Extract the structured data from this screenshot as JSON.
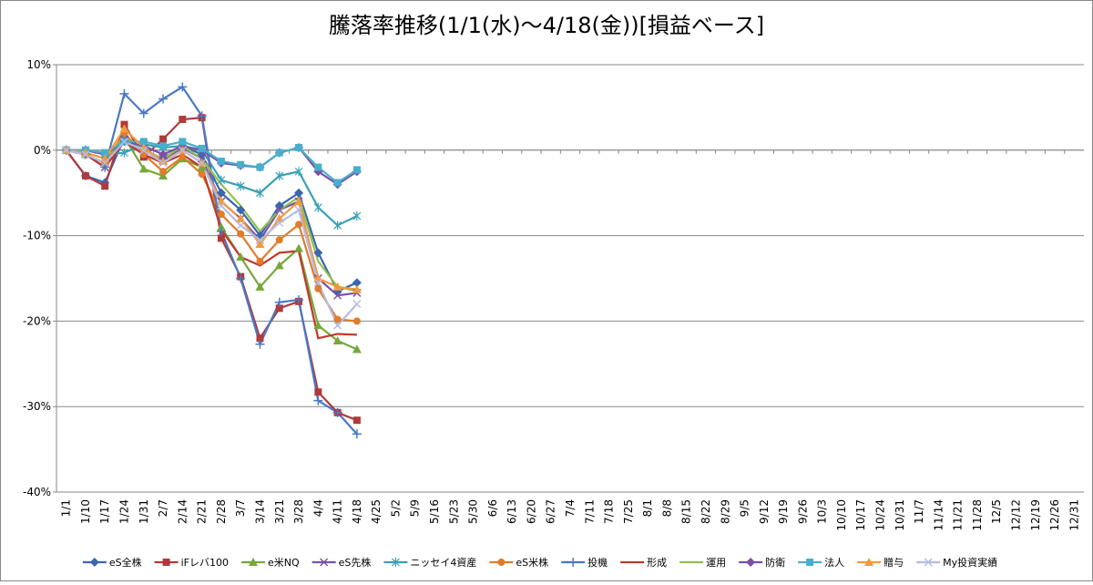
{
  "chart_data": {
    "type": "line",
    "title": "騰落率推移(1/1(水)～4/18(金))[損益ベース]",
    "categories": [
      "1/1",
      "1/10",
      "1/17",
      "1/24",
      "1/31",
      "2/7",
      "2/14",
      "2/21",
      "2/28",
      "3/7",
      "3/14",
      "3/21",
      "3/28",
      "4/4",
      "4/11",
      "4/18",
      "4/25",
      "5/2",
      "5/9",
      "5/16",
      "5/23",
      "5/30",
      "6/6",
      "6/13",
      "6/20",
      "6/27",
      "7/4",
      "7/11",
      "7/18",
      "7/25",
      "8/1",
      "8/8",
      "8/15",
      "8/22",
      "8/29",
      "9/5",
      "9/12",
      "9/19",
      "9/26",
      "10/3",
      "10/10",
      "10/17",
      "10/24",
      "10/31",
      "11/7",
      "11/14",
      "11/21",
      "11/28",
      "12/5",
      "12/12",
      "12/19",
      "12/26",
      "12/31"
    ],
    "ylim": [
      -40,
      10
    ],
    "yticks": [
      {
        "value": -40,
        "label": "-40%"
      },
      {
        "value": -30,
        "label": "-30%"
      },
      {
        "value": -20,
        "label": "-20%"
      },
      {
        "value": -10,
        "label": "-10%"
      },
      {
        "value": 0,
        "label": "0%"
      },
      {
        "value": 10,
        "label": "10%"
      }
    ],
    "grid": true,
    "legend": "bottom",
    "series": [
      {
        "name": "eS全株",
        "color": "#3a66b0",
        "marker": "diamond",
        "values": [
          0,
          -3,
          -3.8,
          1.5,
          0,
          -1,
          0.5,
          -0.5,
          -5,
          -7,
          -10,
          -6.5,
          -5,
          -12,
          -16.5,
          -15.5,
          null,
          null,
          null,
          null,
          null,
          null,
          null,
          null,
          null,
          null,
          null,
          null,
          null,
          null,
          null,
          null,
          null,
          null,
          null,
          null,
          null,
          null,
          null,
          null,
          null,
          null,
          null,
          null,
          null,
          null,
          null,
          null,
          null,
          null,
          null,
          null,
          null
        ]
      },
      {
        "name": "iFレバ100",
        "color": "#b03a3a",
        "marker": "square",
        "values": [
          0,
          -3,
          -4.2,
          3,
          -0.8,
          1.3,
          3.6,
          3.8,
          -10.3,
          -14.8,
          -22,
          -18.5,
          -17.7,
          -28.3,
          -30.7,
          -31.6,
          null,
          null,
          null,
          null,
          null,
          null,
          null,
          null,
          null,
          null,
          null,
          null,
          null,
          null,
          null,
          null,
          null,
          null,
          null,
          null,
          null,
          null,
          null,
          null,
          null,
          null,
          null,
          null,
          null,
          null,
          null,
          null,
          null,
          null,
          null,
          null,
          null
        ]
      },
      {
        "name": "e米NQ",
        "color": "#77a83a",
        "marker": "triangle",
        "values": [
          0,
          -0.5,
          -1.5,
          1.5,
          -2.2,
          -3,
          -1,
          -2,
          -9,
          -12.5,
          -16,
          -13.5,
          -11.5,
          -20.5,
          -22.3,
          -23.3,
          null,
          null,
          null,
          null,
          null,
          null,
          null,
          null,
          null,
          null,
          null,
          null,
          null,
          null,
          null,
          null,
          null,
          null,
          null,
          null,
          null,
          null,
          null,
          null,
          null,
          null,
          null,
          null,
          null,
          null,
          null,
          null,
          null,
          null,
          null,
          null,
          null
        ]
      },
      {
        "name": "eS先株",
        "color": "#7a52a8",
        "marker": "x",
        "values": [
          0,
          -0.5,
          -2,
          1.3,
          0,
          -1.2,
          0.3,
          -1,
          -6,
          -8,
          -10.5,
          -7,
          -6,
          -15,
          -17,
          -16.7,
          null,
          null,
          null,
          null,
          null,
          null,
          null,
          null,
          null,
          null,
          null,
          null,
          null,
          null,
          null,
          null,
          null,
          null,
          null,
          null,
          null,
          null,
          null,
          null,
          null,
          null,
          null,
          null,
          null,
          null,
          null,
          null,
          null,
          null,
          null,
          null,
          null
        ]
      },
      {
        "name": "ニッセイ4資産",
        "color": "#3aa0b8",
        "marker": "star",
        "values": [
          0,
          0,
          -0.5,
          -0.3,
          0.7,
          0.3,
          0.5,
          0,
          -3.5,
          -4.2,
          -5,
          -3,
          -2.5,
          -6.7,
          -8.8,
          -7.7,
          null,
          null,
          null,
          null,
          null,
          null,
          null,
          null,
          null,
          null,
          null,
          null,
          null,
          null,
          null,
          null,
          null,
          null,
          null,
          null,
          null,
          null,
          null,
          null,
          null,
          null,
          null,
          null,
          null,
          null,
          null,
          null,
          null,
          null,
          null,
          null,
          null
        ]
      },
      {
        "name": "eS米株",
        "color": "#e07c2a",
        "marker": "circle",
        "values": [
          0,
          -0.5,
          -1.5,
          2,
          -0.5,
          -2.5,
          -0.8,
          -2.8,
          -7.5,
          -9.8,
          -13,
          -10.5,
          -8.7,
          -16.2,
          -19.8,
          -20,
          null,
          null,
          null,
          null,
          null,
          null,
          null,
          null,
          null,
          null,
          null,
          null,
          null,
          null,
          null,
          null,
          null,
          null,
          null,
          null,
          null,
          null,
          null,
          null,
          null,
          null,
          null,
          null,
          null,
          null,
          null,
          null,
          null,
          null,
          null,
          null,
          null
        ]
      },
      {
        "name": "投機",
        "color": "#4a78c8",
        "marker": "plus",
        "values": [
          0,
          -0.5,
          -2,
          6.6,
          4.3,
          6,
          7.4,
          4,
          -9.5,
          -15,
          -22.7,
          -17.8,
          -17.5,
          -29.3,
          -30.7,
          -33.2,
          null,
          null,
          null,
          null,
          null,
          null,
          null,
          null,
          null,
          null,
          null,
          null,
          null,
          null,
          null,
          null,
          null,
          null,
          null,
          null,
          null,
          null,
          null,
          null,
          null,
          null,
          null,
          null,
          null,
          null,
          null,
          null,
          null,
          null,
          null,
          null,
          null
        ]
      },
      {
        "name": "形成",
        "color": "#c0392b",
        "marker": "none",
        "values": [
          0,
          -0.5,
          -2,
          1,
          -0.5,
          -1.5,
          -0.5,
          -2,
          -9.3,
          -12.5,
          -13.5,
          -12,
          -11.8,
          -22,
          -21.5,
          -21.6,
          null,
          null,
          null,
          null,
          null,
          null,
          null,
          null,
          null,
          null,
          null,
          null,
          null,
          null,
          null,
          null,
          null,
          null,
          null,
          null,
          null,
          null,
          null,
          null,
          null,
          null,
          null,
          null,
          null,
          null,
          null,
          null,
          null,
          null,
          null,
          null,
          null
        ]
      },
      {
        "name": "運用",
        "color": "#92c050",
        "marker": "none",
        "values": [
          0,
          -0.3,
          -1,
          1.5,
          0,
          -1,
          0.5,
          -1,
          -4,
          -6.5,
          -9.5,
          -7,
          -5.5,
          -13,
          -16,
          -16.5,
          null,
          null,
          null,
          null,
          null,
          null,
          null,
          null,
          null,
          null,
          null,
          null,
          null,
          null,
          null,
          null,
          null,
          null,
          null,
          null,
          null,
          null,
          null,
          null,
          null,
          null,
          null,
          null,
          null,
          null,
          null,
          null,
          null,
          null,
          null,
          null,
          null
        ]
      },
      {
        "name": "防衛",
        "color": "#7b4fa8",
        "marker": "diamond",
        "values": [
          0,
          0,
          -0.5,
          1,
          0.5,
          -0.5,
          0.5,
          0,
          -1.5,
          -1.8,
          -2,
          -0.3,
          0.3,
          -2.5,
          -4,
          -2.5,
          null,
          null,
          null,
          null,
          null,
          null,
          null,
          null,
          null,
          null,
          null,
          null,
          null,
          null,
          null,
          null,
          null,
          null,
          null,
          null,
          null,
          null,
          null,
          null,
          null,
          null,
          null,
          null,
          null,
          null,
          null,
          null,
          null,
          null,
          null,
          null,
          null
        ]
      },
      {
        "name": "法人",
        "color": "#46b0cc",
        "marker": "square",
        "values": [
          0,
          0,
          -0.3,
          1,
          1,
          0.5,
          1,
          0.2,
          -1.3,
          -1.7,
          -2,
          -0.3,
          0.3,
          -2,
          -3.8,
          -2.3,
          null,
          null,
          null,
          null,
          null,
          null,
          null,
          null,
          null,
          null,
          null,
          null,
          null,
          null,
          null,
          null,
          null,
          null,
          null,
          null,
          null,
          null,
          null,
          null,
          null,
          null,
          null,
          null,
          null,
          null,
          null,
          null,
          null,
          null,
          null,
          null,
          null
        ]
      },
      {
        "name": "贈与",
        "color": "#f29a3a",
        "marker": "triangle",
        "values": [
          0,
          -0.3,
          -1,
          2.5,
          0.3,
          -1.3,
          0,
          -1.5,
          -6,
          -8,
          -11,
          -8,
          -6,
          -15,
          -16,
          -16.3,
          null,
          null,
          null,
          null,
          null,
          null,
          null,
          null,
          null,
          null,
          null,
          null,
          null,
          null,
          null,
          null,
          null,
          null,
          null,
          null,
          null,
          null,
          null,
          null,
          null,
          null,
          null,
          null,
          null,
          null,
          null,
          null,
          null,
          null,
          null,
          null,
          null
        ]
      },
      {
        "name": "My投資実績",
        "color": "#b4bce8",
        "marker": "x",
        "values": [
          0,
          -0.5,
          -1.5,
          1,
          0,
          -1.5,
          0,
          -1.5,
          -6.5,
          -8.8,
          -10.5,
          -8.5,
          -7,
          -15.5,
          -20.5,
          -18,
          null,
          null,
          null,
          null,
          null,
          null,
          null,
          null,
          null,
          null,
          null,
          null,
          null,
          null,
          null,
          null,
          null,
          null,
          null,
          null,
          null,
          null,
          null,
          null,
          null,
          null,
          null,
          null,
          null,
          null,
          null,
          null,
          null,
          null,
          null,
          null,
          null
        ]
      }
    ]
  }
}
